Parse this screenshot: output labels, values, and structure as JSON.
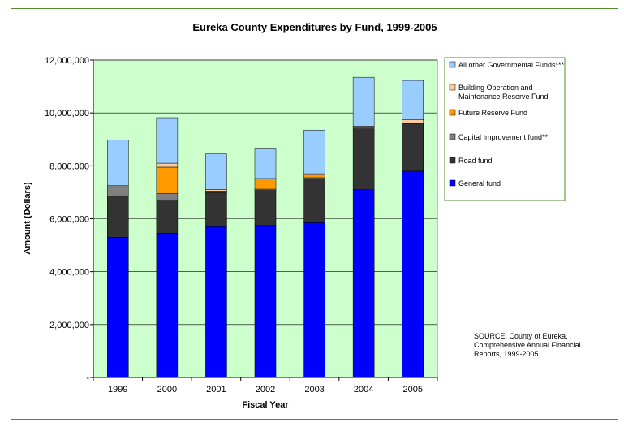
{
  "chart_data": {
    "type": "bar",
    "stacked": true,
    "title": "Eureka County Expenditures by Fund, 1999-2005",
    "xlabel": "Fiscal Year",
    "ylabel": "Amount (Dollars)",
    "ylim": [
      0,
      12000000
    ],
    "yticks": [
      0,
      2000000,
      4000000,
      6000000,
      8000000,
      10000000,
      12000000
    ],
    "ytick_labels": [
      "-",
      "2,000,000",
      "4,000,000",
      "6,000,000",
      "8,000,000",
      "10,000,000",
      "12,000,000"
    ],
    "categories": [
      "1999",
      "2000",
      "2001",
      "2002",
      "2003",
      "2004",
      "2005"
    ],
    "plot_background": "#ccffcc",
    "grid": "horizontal",
    "legend_position": "right",
    "series": [
      {
        "name": "General fund",
        "color": "#0000ff",
        "values": [
          5300000,
          5450000,
          5700000,
          5750000,
          5850000,
          7100000,
          7800000
        ]
      },
      {
        "name": "Road fund",
        "color": "#333333",
        "values": [
          1550000,
          1250000,
          1300000,
          1320000,
          1650000,
          2300000,
          1800000
        ]
      },
      {
        "name": "Capital Improvement fund**",
        "color": "#808080",
        "values": [
          400000,
          250000,
          50000,
          50000,
          50000,
          50000,
          0
        ]
      },
      {
        "name": "Future Reserve Fund",
        "color": "#ff9900",
        "values": [
          0,
          1000000,
          0,
          400000,
          100000,
          0,
          0
        ]
      },
      {
        "name": "Building Operation and Maintenance Reserve Fund",
        "color": "#ffcc99",
        "values": [
          0,
          150000,
          50000,
          0,
          50000,
          50000,
          150000
        ]
      },
      {
        "name": "All other Governmental Funds***",
        "color": "#99ccff",
        "values": [
          1720000,
          1720000,
          1350000,
          1150000,
          1650000,
          1850000,
          1480000
        ]
      }
    ],
    "legend": {
      "entries": [
        {
          "label": "All other Governmental Funds***",
          "color": "#99ccff",
          "lines": [
            "All other Governmental Funds***"
          ]
        },
        {
          "label": "Building Operation and Maintenance Reserve Fund",
          "color": "#ffcc99",
          "lines": [
            "Building Operation and",
            "Maintenance Reserve Fund"
          ]
        },
        {
          "label": "Future Reserve Fund",
          "color": "#ff9900",
          "lines": [
            "Future Reserve Fund"
          ]
        },
        {
          "label": "Capital Improvement fund**",
          "color": "#808080",
          "lines": [
            "Capital Improvement fund**"
          ]
        },
        {
          "label": "Road fund",
          "color": "#333333",
          "lines": [
            "Road fund"
          ]
        },
        {
          "label": "General fund",
          "color": "#0000ff",
          "lines": [
            "General fund"
          ]
        }
      ]
    },
    "annotation": {
      "lines": [
        "SOURCE: County of Eureka,",
        "Comprehensive Annual Financial",
        "Reports, 1999-2005"
      ]
    }
  }
}
